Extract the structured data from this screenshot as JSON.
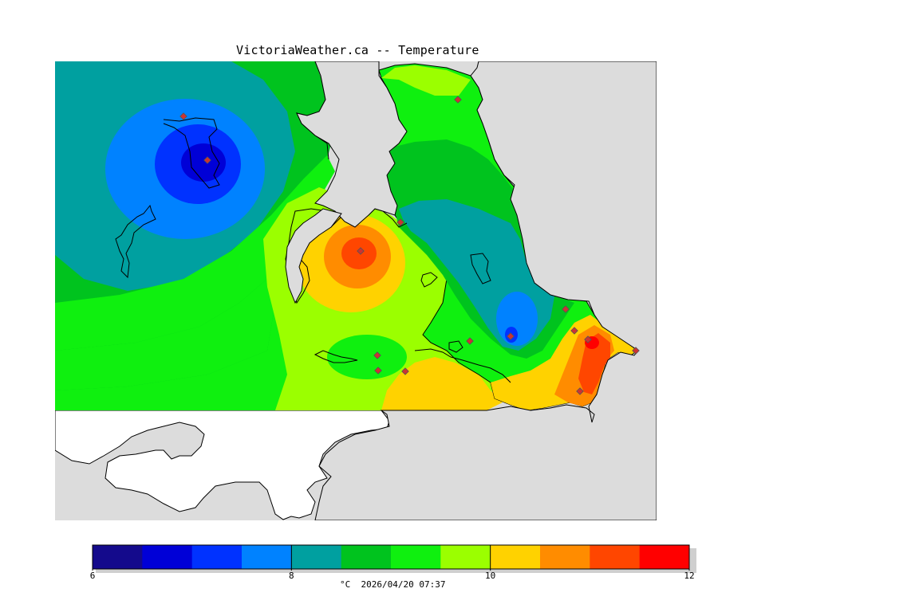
{
  "title": "VictoriaWeather.ca -- Temperature",
  "legend": {
    "ticks": [
      "6",
      "8",
      "10",
      "12"
    ],
    "tick_values": [
      6,
      8,
      10,
      12
    ],
    "range": [
      6,
      12
    ],
    "colors": [
      "#140a8c",
      "#0000d7",
      "#0032ff",
      "#0082ff",
      "#00a0a0",
      "#00c31e",
      "#0ff00f",
      "#9bff00",
      "#ffd200",
      "#ff8c00",
      "#ff4600",
      "#ff0000"
    ],
    "unit": "°C",
    "timestamp": "2026/04/20 07:37"
  },
  "map_colors": {
    "land_outside": "#dcdcdc",
    "water_white": "#ffffff",
    "coastline": "#000000",
    "station": "#cc3333"
  }
}
